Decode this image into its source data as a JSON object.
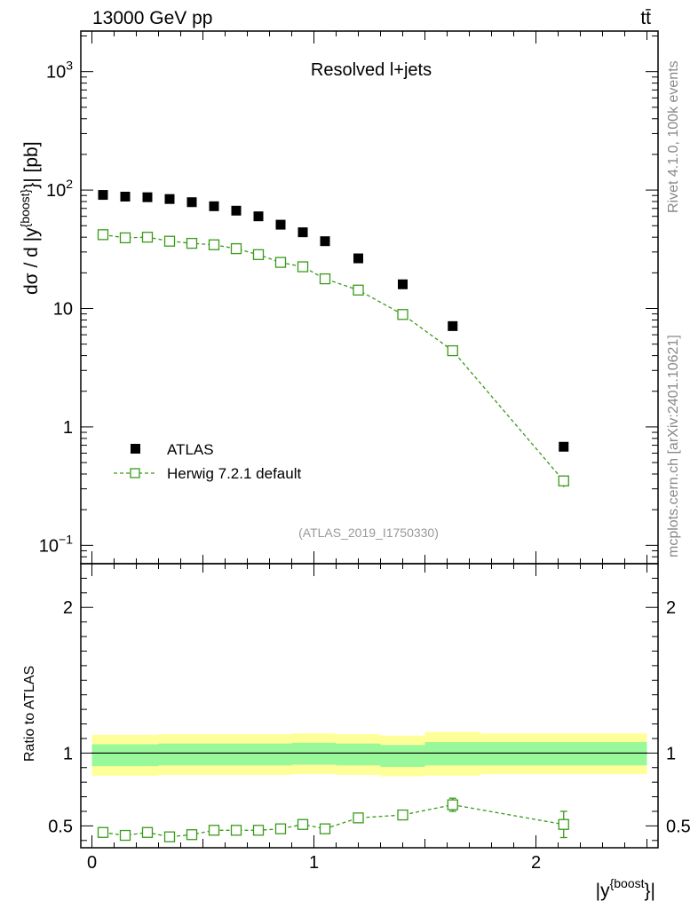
{
  "header": {
    "energy_label": "13000 GeV pp",
    "process_label": "tt̄"
  },
  "side_labels": {
    "rivet": "Rivet 4.1.0,  100k events",
    "mcplots": "mcplots.cern.ch [arXiv:2401.10621]"
  },
  "analysis_id": "(ATLAS_2019_I1750330)",
  "annotation": "Resolved l+jets",
  "legend": {
    "data_label": "ATLAS",
    "mc_label": "Herwig 7.2.1 default"
  },
  "colors": {
    "data": "#000000",
    "mc": "#3a9a1a",
    "band_inner": "#99f899",
    "band_outer": "#ffff99"
  },
  "chart_data": [
    {
      "type": "scatter",
      "panel": "main",
      "ylabel_base": "dσ / d |y",
      "ylabel_sup": "{boost}",
      "ylabel_tail": "}| [pb]",
      "yscale": "log",
      "ylim": [
        0.07,
        2200
      ],
      "xlim": [
        -0.05,
        2.55
      ],
      "y_ticks": [
        {
          "value": 0.1,
          "base": "10",
          "exp": "−1"
        },
        {
          "value": 1,
          "base": "1",
          "exp": ""
        },
        {
          "value": 10,
          "base": "10",
          "exp": ""
        },
        {
          "value": 100,
          "base": "10",
          "exp": "2"
        },
        {
          "value": 1000,
          "base": "10",
          "exp": "3"
        }
      ],
      "bins": [
        0,
        0.1,
        0.2,
        0.3,
        0.4,
        0.5,
        0.6,
        0.7,
        0.8,
        0.9,
        1.0,
        1.1,
        1.3,
        1.5,
        1.75,
        2.5
      ],
      "series": [
        {
          "name": "ATLAS",
          "x": [
            0.05,
            0.15,
            0.25,
            0.35,
            0.45,
            0.55,
            0.65,
            0.75,
            0.85,
            0.95,
            1.05,
            1.2,
            1.4,
            1.625,
            2.125
          ],
          "values": [
            91,
            88,
            87,
            84,
            79,
            73,
            67,
            60,
            51,
            44,
            37,
            26.5,
            16,
            7.1,
            0.68
          ]
        },
        {
          "name": "Herwig 7.2.1 default",
          "x": [
            0.05,
            0.15,
            0.25,
            0.35,
            0.45,
            0.55,
            0.65,
            0.75,
            0.85,
            0.95,
            1.05,
            1.2,
            1.4,
            1.625,
            2.125
          ],
          "values": [
            42,
            39.5,
            40,
            37,
            35.5,
            34.5,
            32,
            28.5,
            24.5,
            22.5,
            17.8,
            14.3,
            8.9,
            4.4,
            0.35
          ],
          "errors": [
            0,
            0,
            0,
            0,
            0,
            0,
            0,
            0,
            0,
            0,
            0,
            0,
            0,
            0,
            0.04
          ]
        }
      ]
    },
    {
      "type": "scatter",
      "panel": "ratio",
      "ylabel": "Ratio to ATLAS",
      "xlabel_base": "|y",
      "xlabel_sup": "{boost",
      "xlabel_tail": "}|",
      "ylim": [
        0.35,
        2.3
      ],
      "xlim": [
        -0.05,
        2.55
      ],
      "x_ticks": [
        0,
        1,
        2
      ],
      "x_tick_labels": [
        "0",
        "1",
        "2"
      ],
      "y_ticks": [
        0.5,
        1,
        2
      ],
      "y_tick_labels": [
        "0.5",
        "1",
        "2"
      ],
      "band_edges": [
        0,
        0.1,
        0.2,
        0.3,
        0.4,
        0.5,
        0.6,
        0.7,
        0.8,
        0.9,
        1.0,
        1.1,
        1.3,
        1.5,
        1.75,
        2.5
      ],
      "band_inner": [
        0.075,
        0.075,
        0.075,
        0.075,
        0.075,
        0.075,
        0.075,
        0.075,
        0.075,
        0.075,
        0.075,
        0.075,
        0.075,
        0.08,
        0.08
      ],
      "band_outer": [
        0.14,
        0.14,
        0.14,
        0.14,
        0.14,
        0.14,
        0.14,
        0.14,
        0.14,
        0.14,
        0.14,
        0.14,
        0.14,
        0.15,
        0.14
      ],
      "band_offset": [
        -0.015,
        -0.015,
        -0.015,
        -0.01,
        -0.01,
        -0.01,
        -0.01,
        -0.01,
        -0.01,
        -0.005,
        -0.005,
        -0.01,
        -0.02,
        -0.005,
        -0.005
      ],
      "series": [
        {
          "name": "Herwig 7.2.1 default",
          "x": [
            0.05,
            0.15,
            0.25,
            0.35,
            0.45,
            0.55,
            0.65,
            0.75,
            0.85,
            0.95,
            1.05,
            1.2,
            1.4,
            1.625,
            2.125
          ],
          "values": [
            0.455,
            0.435,
            0.455,
            0.425,
            0.44,
            0.47,
            0.47,
            0.47,
            0.48,
            0.51,
            0.48,
            0.555,
            0.575,
            0.645,
            0.51
          ],
          "errors": [
            0.01,
            0.01,
            0.012,
            0.012,
            0.012,
            0.015,
            0.015,
            0.015,
            0.02,
            0.02,
            0.025,
            0.02,
            0.03,
            0.045,
            0.09
          ]
        },
        {
          "name": "ATLAS",
          "reference_line": 1
        }
      ]
    }
  ]
}
